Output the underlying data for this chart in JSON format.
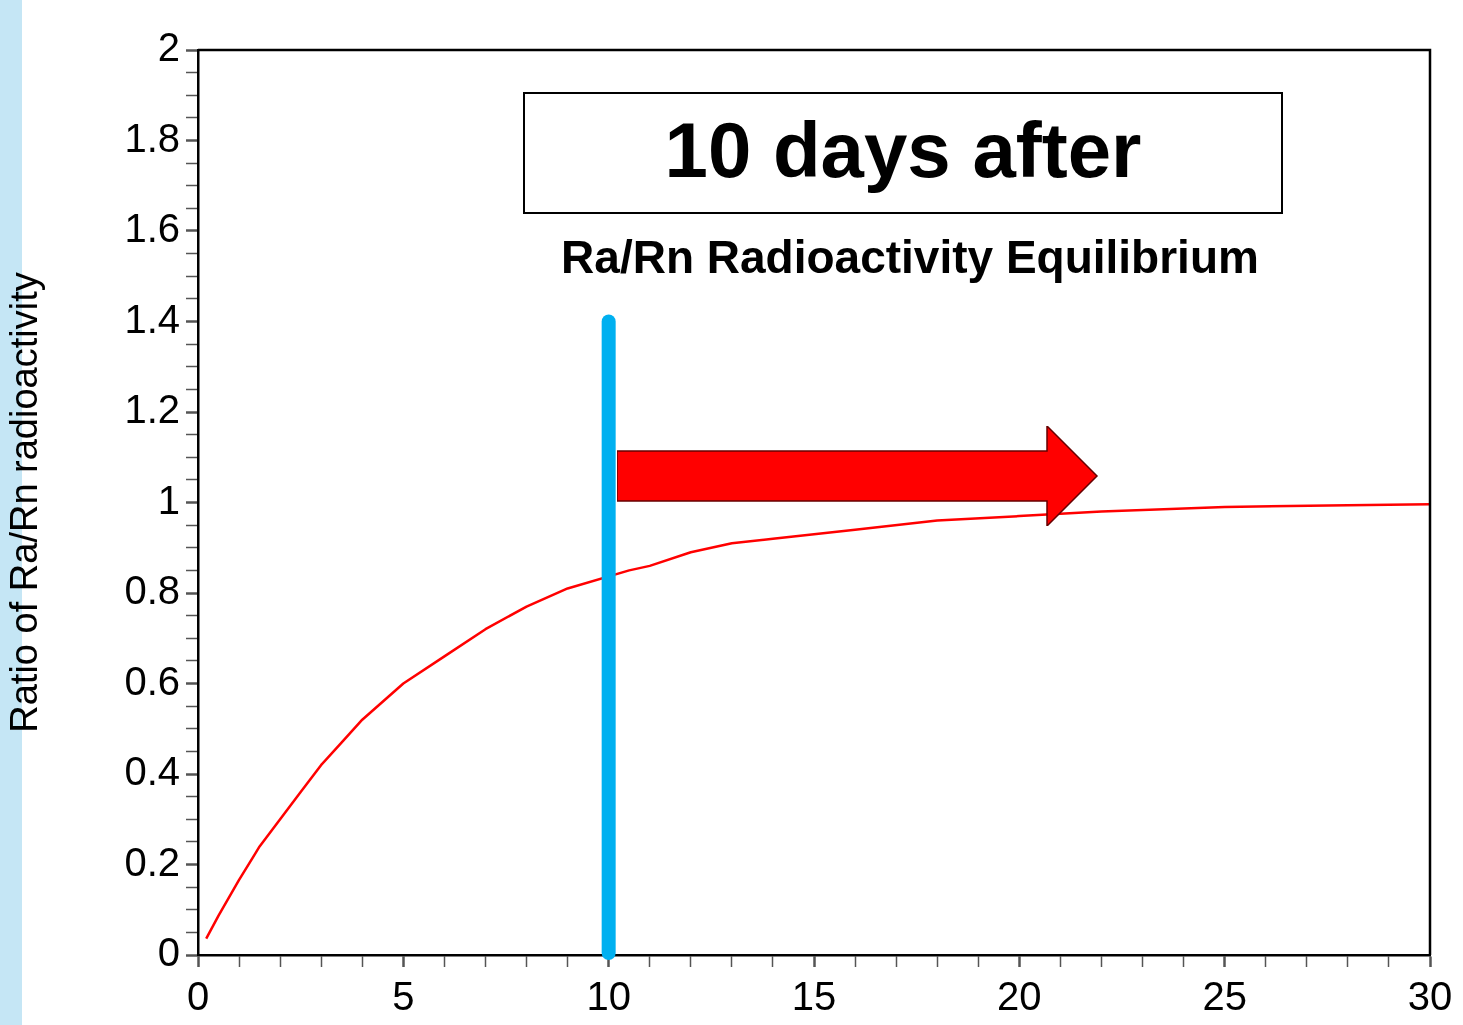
{
  "chart_data": {
    "type": "line",
    "title": "Ra/Rn Radioactivity Equilibrium",
    "ylabel": "Ratio of Ra/Rn radioactivity",
    "annotations": [
      "10 days after"
    ],
    "series": [
      {
        "color": "#ff0000",
        "x": [
          0.2,
          0.5,
          1,
          1.5,
          2,
          2.5,
          3,
          3.5,
          4,
          5,
          6,
          7,
          8,
          9,
          10.5,
          11,
          12,
          13,
          14,
          15,
          16,
          18,
          20,
          22,
          25,
          28,
          30
        ],
        "values": [
          0.036,
          0.087,
          0.166,
          0.24,
          0.3,
          0.36,
          0.42,
          0.47,
          0.52,
          0.6,
          0.66,
          0.72,
          0.77,
          0.81,
          0.85,
          0.86,
          0.89,
          0.91,
          0.92,
          0.93,
          0.94,
          0.96,
          0.97,
          0.98,
          0.99,
          0.994,
          0.996
        ]
      }
    ],
    "xlim": [
      0,
      30
    ],
    "xticks": [
      0,
      {
        "value": 1,
        "label": null
      },
      {
        "value": 2,
        "label": null
      },
      {
        "value": 3,
        "label": null
      },
      {
        "value": 4,
        "label": null
      },
      5,
      {
        "value": 6,
        "label": null
      },
      {
        "value": 7,
        "label": null
      },
      {
        "value": 8,
        "label": null
      },
      {
        "value": 9,
        "label": null
      },
      10,
      {
        "value": 11,
        "label": null
      },
      {
        "value": 12,
        "label": null
      },
      {
        "value": 13,
        "label": null
      },
      {
        "value": 14,
        "label": null
      },
      15,
      {
        "value": 16,
        "label": null
      },
      {
        "value": 17,
        "label": null
      },
      {
        "value": 18,
        "label": null
      },
      {
        "value": 19,
        "label": null
      },
      20,
      {
        "value": 21,
        "label": null
      },
      {
        "value": 22,
        "label": null
      },
      {
        "value": 23,
        "label": null
      },
      {
        "value": 24,
        "label": null
      },
      25,
      {
        "value": 26,
        "label": null
      },
      {
        "value": 27,
        "label": null
      },
      {
        "value": 28,
        "label": null
      },
      {
        "value": 29,
        "label": null
      },
      30
    ],
    "ylim": [
      0,
      2
    ],
    "yticks": [
      0,
      {
        "value": 0.05,
        "label": null
      },
      {
        "value": 0.1,
        "label": null
      },
      {
        "value": 0.15,
        "label": null
      },
      0.2,
      {
        "value": 0.25,
        "label": null
      },
      {
        "value": 0.3,
        "label": null
      },
      {
        "value": 0.35,
        "label": null
      },
      0.4,
      {
        "value": 0.45,
        "label": null
      },
      {
        "value": 0.5,
        "label": null
      },
      {
        "value": 0.55,
        "label": null
      },
      0.6,
      {
        "value": 0.65,
        "label": null
      },
      {
        "value": 0.7,
        "label": null
      },
      {
        "value": 0.75,
        "label": null
      },
      0.8,
      {
        "value": 0.85,
        "label": null
      },
      {
        "value": 0.9,
        "label": null
      },
      {
        "value": 0.95,
        "label": null
      },
      1,
      {
        "value": 1.05,
        "label": null
      },
      {
        "value": 1.1,
        "label": null
      },
      {
        "value": 1.15,
        "label": null
      },
      1.2,
      {
        "value": 1.25,
        "label": null
      },
      {
        "value": 1.3,
        "label": null
      },
      {
        "value": 1.35,
        "label": null
      },
      1.4,
      {
        "value": 1.45,
        "label": null
      },
      {
        "value": 1.5,
        "label": null
      },
      {
        "value": 1.55,
        "label": null
      },
      1.6,
      {
        "value": 1.65,
        "label": null
      },
      {
        "value": 1.7,
        "label": null
      },
      {
        "value": 1.75,
        "label": null
      },
      1.8,
      {
        "value": 1.85,
        "label": null
      },
      {
        "value": 1.9,
        "label": null
      },
      {
        "value": 1.95,
        "label": null
      },
      2
    ],
    "ref_lines": [
      {
        "axis": "x",
        "value": 10,
        "color": "#00b0f0"
      }
    ],
    "grid": false,
    "legend": false,
    "marker": "none",
    "line_style": "solid"
  }
}
